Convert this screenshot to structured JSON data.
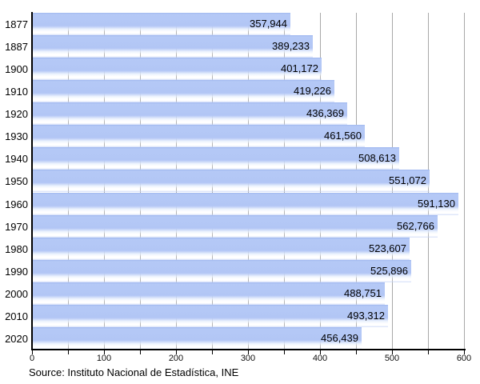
{
  "chart_data": {
    "type": "bar",
    "orientation": "horizontal",
    "title": "",
    "categories": [
      "1877",
      "1887",
      "1900",
      "1910",
      "1920",
      "1930",
      "1940",
      "1950",
      "1960",
      "1970",
      "1980",
      "1990",
      "2000",
      "2010",
      "2020"
    ],
    "values": [
      357944,
      389233,
      401172,
      419226,
      436369,
      461560,
      508613,
      551072,
      591130,
      562766,
      523607,
      525896,
      488751,
      493312,
      456439
    ],
    "value_labels": [
      "357,944",
      "389,233",
      "401,172",
      "419,226",
      "436,369",
      "461,560",
      "508,613",
      "551,072",
      "591,130",
      "562,766",
      "523,607",
      "525,896",
      "488,751",
      "493,312",
      "456,439"
    ],
    "xlim": [
      0,
      600
    ],
    "x_major_ticks": [
      0,
      100,
      200,
      300,
      400,
      500,
      600
    ],
    "x_minor_tick_step": 50,
    "grid": "vertical-every-50",
    "legend": "none",
    "bar_color": "#b2c6f5",
    "grid_color": "#a9a9a9",
    "axis_color": "#000000",
    "source": "Source: Instituto Nacional de Estadística, INE"
  }
}
